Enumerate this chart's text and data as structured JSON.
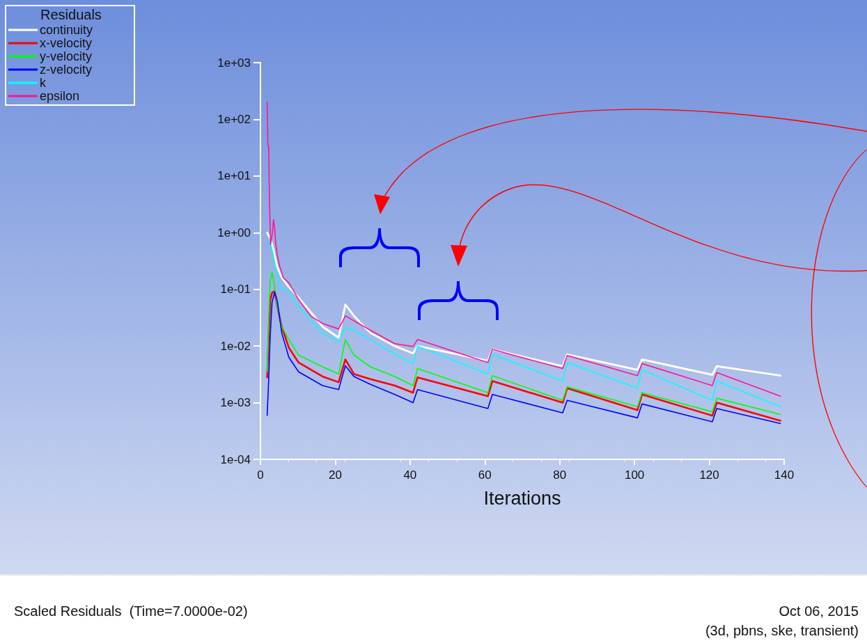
{
  "chart_data": {
    "type": "line",
    "xlabel": "Iterations",
    "legend_title": "Residuals",
    "legend": "top left",
    "log": "y",
    "grid": false,
    "marker": "none",
    "line_style": "solid",
    "x": [
      1.8,
      2.2,
      2.6,
      3.1,
      3.8,
      4.5,
      5.7,
      7.6,
      10.2,
      16.6,
      20.9,
      22.7,
      25,
      29.4,
      35.9,
      40.8,
      42,
      60.8,
      62,
      80.8,
      82,
      100.8,
      102,
      120.8,
      122,
      139
    ],
    "xlim": [
      0,
      140
    ],
    "xticks": [
      0,
      20,
      40,
      60,
      80,
      100,
      120,
      140
    ],
    "ylim": [
      0.0001,
      1000
    ],
    "yticks": [
      {
        "value": 0.0001,
        "label": "1e-04"
      },
      {
        "value": 0.001,
        "label": "1e-03"
      },
      {
        "value": 0.01,
        "label": "1e-02"
      },
      {
        "value": 0.1,
        "label": "1e-01"
      },
      {
        "value": 1,
        "label": "1e+00"
      },
      {
        "value": 10,
        "label": "1e+01"
      },
      {
        "value": 100,
        "label": "1e+02"
      },
      {
        "value": 1000,
        "label": "1e+03"
      }
    ],
    "series": [
      {
        "name": "continuity",
        "color": "#ffffff",
        "values": [
          1.0,
          0.89,
          0.79,
          0.63,
          0.4,
          0.25,
          0.16,
          0.11,
          0.072,
          0.022,
          0.014,
          0.054,
          0.034,
          0.017,
          0.01,
          0.0074,
          0.01,
          0.0055,
          0.0087,
          0.0044,
          0.0071,
          0.0038,
          0.0058,
          0.0031,
          0.0044,
          0.003
        ]
      },
      {
        "name": "x-velocity",
        "color": "#ff0000",
        "values": [
          0.0028,
          0.016,
          0.063,
          0.087,
          0.093,
          0.05,
          0.022,
          0.0093,
          0.0051,
          0.0029,
          0.0023,
          0.0058,
          0.0032,
          0.0026,
          0.002,
          0.0015,
          0.0028,
          0.0013,
          0.0024,
          0.001,
          0.0018,
          0.00074,
          0.0014,
          0.00059,
          0.001,
          0.00048
        ]
      },
      {
        "name": "y-velocity",
        "color": "#00ff00",
        "values": [
          0.0035,
          0.032,
          0.14,
          0.2,
          0.11,
          0.05,
          0.022,
          0.013,
          0.0069,
          0.0043,
          0.0032,
          0.013,
          0.0069,
          0.0043,
          0.0029,
          0.002,
          0.004,
          0.0015,
          0.003,
          0.0011,
          0.0019,
          0.00085,
          0.0015,
          0.00069,
          0.0012,
          0.00062
        ]
      },
      {
        "name": "z-velocity",
        "color": "#0000ff",
        "values": [
          0.0006,
          0.0025,
          0.015,
          0.059,
          0.089,
          0.063,
          0.017,
          0.0063,
          0.0035,
          0.002,
          0.0017,
          0.0045,
          0.0029,
          0.0021,
          0.0014,
          0.001,
          0.0017,
          0.00079,
          0.0014,
          0.00066,
          0.0011,
          0.00054,
          0.00095,
          0.00046,
          0.00079,
          0.00043
        ]
      },
      {
        "name": "k",
        "color": "#00ffff",
        "values": [
          0.76,
          0.71,
          0.68,
          0.5,
          0.28,
          0.19,
          0.1,
          0.093,
          0.049,
          0.017,
          0.012,
          0.021,
          0.019,
          0.013,
          0.0072,
          0.0049,
          0.01,
          0.0032,
          0.0071,
          0.0024,
          0.0051,
          0.0018,
          0.0038,
          0.0011,
          0.0024,
          0.00085
        ]
      },
      {
        "name": "epsilon",
        "color": "#ff1493",
        "x": [
          1.8,
          2.0,
          2.2,
          2.4,
          2.7,
          3.2,
          3.5,
          3.8,
          4.1,
          4.5,
          5.1,
          6.1,
          7.6,
          10.2,
          13.4,
          16.6,
          20.9,
          22.7,
          29.4,
          35.9,
          40.8,
          42,
          60.8,
          62,
          80.8,
          82,
          100.8,
          102,
          120.8,
          122,
          139
        ],
        "values": [
          200,
          34,
          34,
          4.0,
          0.62,
          1.0,
          1.7,
          1.2,
          0.62,
          0.4,
          0.26,
          0.16,
          0.13,
          0.066,
          0.034,
          0.025,
          0.02,
          0.034,
          0.019,
          0.011,
          0.0098,
          0.013,
          0.0051,
          0.0087,
          0.004,
          0.0068,
          0.003,
          0.0049,
          0.002,
          0.0034,
          0.0013
        ]
      }
    ],
    "annotations": [
      "Scaled Residuals  (Time=7.0000e-02)",
      "Oct 06, 2015",
      "(3d, pbns, ske, transient)"
    ]
  }
}
